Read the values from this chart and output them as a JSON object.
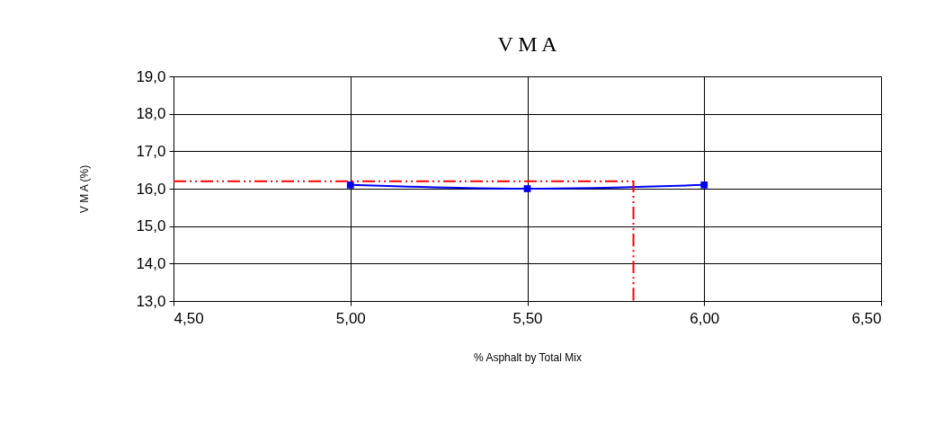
{
  "chart_data": {
    "type": "line",
    "title": "V M A",
    "xlabel": "% Asphalt by Total Mix",
    "ylabel": "V M A (%)",
    "xlim": [
      4.5,
      6.5
    ],
    "xticks": [
      {
        "value": 4.5,
        "label": "4,50"
      },
      {
        "value": 5,
        "label": "5,00"
      },
      {
        "value": 5.5,
        "label": "5,50"
      },
      {
        "value": 6,
        "label": "6,00"
      },
      {
        "value": 6.5,
        "label": "6,50"
      }
    ],
    "ylim": [
      13,
      19
    ],
    "yticks": [
      {
        "value": 13,
        "label": "13,0"
      },
      {
        "value": 14,
        "label": "14,0"
      },
      {
        "value": 15,
        "label": "15,0"
      },
      {
        "value": 16,
        "label": "16,0"
      },
      {
        "value": 17,
        "label": "17,0"
      },
      {
        "value": 18,
        "label": "18,0"
      },
      {
        "value": 19,
        "label": "19,0"
      }
    ],
    "grid": true,
    "series": [
      {
        "color": "#0000ff",
        "x": [
          5.0,
          5.5,
          6.0
        ],
        "values": [
          16.1,
          16.0,
          16.1
        ],
        "marker": "square",
        "line_style": "solid"
      },
      {
        "color": "#ff0000",
        "x": [
          4.5,
          5.8,
          5.8
        ],
        "values": [
          16.2,
          16.2,
          13.0
        ],
        "marker": "none",
        "line_style": "dashed"
      }
    ]
  }
}
